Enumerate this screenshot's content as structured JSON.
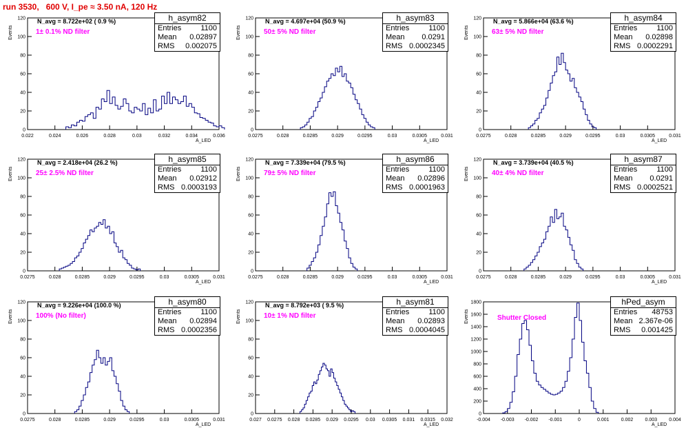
{
  "title": "run 3530,   600 V, I_pe ≈ 3.50 nA, 120 Hz",
  "chart_data": [
    {
      "type": "bar",
      "name": "h_asym82",
      "stats": {
        "entries_label": "Entries",
        "entries": "1100",
        "mean_label": "Mean",
        "mean": "0.02897",
        "rms_label": "RMS",
        "rms": "0.002075"
      },
      "n_avg": "N_avg = 8.722e+02 ( 0.9 %)",
      "filter": "1± 0.1% ND filter",
      "ylabel": "Events",
      "xlabel": "A_LED",
      "xlim": [
        0.022,
        0.036
      ],
      "ylim": [
        0,
        120
      ],
      "xticks": [
        "0.022",
        "0.024",
        "0.026",
        "0.028",
        "0.03",
        "0.032",
        "0.034",
        "0.036"
      ],
      "yticks": [
        "0",
        "20",
        "40",
        "60",
        "80",
        "100",
        "120"
      ],
      "bin_start": 0.0248,
      "bin_width": 0.0002,
      "values": [
        3,
        2,
        5,
        4,
        8,
        10,
        9,
        14,
        16,
        18,
        12,
        24,
        22,
        33,
        30,
        42,
        28,
        35,
        26,
        22,
        25,
        33,
        28,
        20,
        18,
        24,
        22,
        20,
        28,
        16,
        23,
        18,
        32,
        20,
        22,
        36,
        28,
        40,
        28,
        35,
        32,
        28,
        30,
        36,
        25,
        28,
        24,
        18,
        17,
        13,
        12,
        10,
        8,
        7,
        4,
        3,
        4,
        2
      ]
    },
    {
      "type": "bar",
      "name": "h_asym83",
      "stats": {
        "entries_label": "Entries",
        "entries": "1100",
        "mean_label": "Mean",
        "mean": "0.0291",
        "rms_label": "RMS",
        "rms": "0.0002345"
      },
      "n_avg": "N_avg = 4.697e+04 (50.9 %)",
      "filter": "50± 5% ND filter",
      "ylabel": "Events",
      "xlabel": "A_LED",
      "xlim": [
        0.0275,
        0.031
      ],
      "ylim": [
        0,
        120
      ],
      "xticks": [
        "0.0275",
        "0.028",
        "0.0285",
        "0.029",
        "0.0295",
        "0.03",
        "0.0305",
        "0.031"
      ],
      "yticks": [
        "0",
        "20",
        "40",
        "60",
        "80",
        "100",
        "120"
      ],
      "bin_start": 0.02832,
      "bin_width": 4e-05,
      "values": [
        2,
        3,
        5,
        8,
        12,
        14,
        20,
        24,
        30,
        34,
        40,
        46,
        52,
        55,
        60,
        58,
        66,
        62,
        68,
        57,
        60,
        52,
        50,
        45,
        38,
        32,
        28,
        22,
        16,
        12,
        8,
        5,
        3,
        2
      ]
    },
    {
      "type": "bar",
      "name": "h_asym84",
      "stats": {
        "entries_label": "Entries",
        "entries": "1100",
        "mean_label": "Mean",
        "mean": "0.02898",
        "rms_label": "RMS",
        "rms": "0.0002291"
      },
      "n_avg": "N_avg = 5.866e+04 (63.6 %)",
      "filter": "63± 5% ND filter",
      "ylabel": "Events",
      "xlabel": "A_LED",
      "xlim": [
        0.0275,
        0.031
      ],
      "ylim": [
        0,
        120
      ],
      "xticks": [
        "0.0275",
        "0.028",
        "0.0285",
        "0.029",
        "0.0295",
        "0.03",
        "0.0305",
        "0.031"
      ],
      "yticks": [
        "0",
        "20",
        "40",
        "60",
        "80",
        "100",
        "120"
      ],
      "bin_start": 0.02832,
      "bin_width": 4e-05,
      "values": [
        2,
        4,
        6,
        10,
        12,
        18,
        22,
        26,
        34,
        42,
        50,
        58,
        62,
        78,
        70,
        82,
        72,
        64,
        60,
        52,
        55,
        45,
        40,
        35,
        30,
        22,
        16,
        10,
        6,
        3,
        2
      ]
    },
    {
      "type": "bar",
      "name": "h_asym85",
      "stats": {
        "entries_label": "Entries",
        "entries": "1100",
        "mean_label": "Mean",
        "mean": "0.02912",
        "rms_label": "RMS",
        "rms": "0.0003193"
      },
      "n_avg": "N_avg = 2.418e+04 (26.2 %)",
      "filter": "25± 2.5% ND filter",
      "ylabel": "Events",
      "xlabel": "A_LED",
      "xlim": [
        0.0275,
        0.031
      ],
      "ylim": [
        0,
        120
      ],
      "xticks": [
        "0.0275",
        "0.028",
        "0.0285",
        "0.029",
        "0.0295",
        "0.03",
        "0.0305",
        "0.031"
      ],
      "yticks": [
        "0",
        "20",
        "40",
        "60",
        "80",
        "100",
        "120"
      ],
      "bin_start": 0.02808,
      "bin_width": 4e-05,
      "values": [
        2,
        3,
        4,
        5,
        6,
        8,
        10,
        14,
        16,
        20,
        24,
        30,
        34,
        38,
        44,
        42,
        46,
        48,
        52,
        50,
        55,
        46,
        48,
        40,
        42,
        30,
        26,
        20,
        22,
        14,
        12,
        8,
        6,
        3,
        2,
        1,
        2
      ]
    },
    {
      "type": "bar",
      "name": "h_asym86",
      "stats": {
        "entries_label": "Entries",
        "entries": "1100",
        "mean_label": "Mean",
        "mean": "0.02896",
        "rms_label": "RMS",
        "rms": "0.0001963"
      },
      "n_avg": "N_avg = 7.339e+04 (79.5 %)",
      "filter": "79± 5% ND filter",
      "ylabel": "Events",
      "xlabel": "A_LED",
      "xlim": [
        0.0275,
        0.031
      ],
      "ylim": [
        0,
        120
      ],
      "xticks": [
        "0.0275",
        "0.028",
        "0.0285",
        "0.029",
        "0.0295",
        "0.03",
        "0.0305",
        "0.031"
      ],
      "yticks": [
        "0",
        "20",
        "40",
        "60",
        "80",
        "100",
        "120"
      ],
      "bin_start": 0.02844,
      "bin_width": 4e-05,
      "values": [
        3,
        6,
        10,
        14,
        20,
        28,
        38,
        48,
        58,
        72,
        84,
        80,
        85,
        70,
        62,
        52,
        44,
        32,
        24,
        14,
        8,
        4,
        2
      ]
    },
    {
      "type": "bar",
      "name": "h_asym87",
      "stats": {
        "entries_label": "Entries",
        "entries": "1100",
        "mean_label": "Mean",
        "mean": "0.0291",
        "rms_label": "RMS",
        "rms": "0.0002521"
      },
      "n_avg": "N_avg = 3.739e+04 (40.5 %)",
      "filter": "40± 4% ND filter",
      "ylabel": "Events",
      "xlabel": "A_LED",
      "xlim": [
        0.0275,
        0.031
      ],
      "ylim": [
        0,
        120
      ],
      "xticks": [
        "0.0275",
        "0.028",
        "0.0285",
        "0.029",
        "0.0295",
        "0.03",
        "0.0305",
        "0.031"
      ],
      "yticks": [
        "0",
        "20",
        "40",
        "60",
        "80",
        "100",
        "120"
      ],
      "bin_start": 0.02824,
      "bin_width": 4e-05,
      "values": [
        2,
        4,
        6,
        9,
        12,
        16,
        20,
        26,
        30,
        34,
        42,
        48,
        58,
        52,
        66,
        56,
        58,
        62,
        48,
        44,
        36,
        28,
        22,
        12,
        8,
        4,
        2
      ]
    },
    {
      "type": "bar",
      "name": "h_asym80",
      "stats": {
        "entries_label": "Entries",
        "entries": "1100",
        "mean_label": "Mean",
        "mean": "0.02894",
        "rms_label": "RMS",
        "rms": "0.0002356"
      },
      "n_avg": "N_avg = 9.226e+04 (100.0 %)",
      "filter": "100% (No filter)",
      "ylabel": "Events",
      "xlabel": "A_LED",
      "xlim": [
        0.0275,
        0.031
      ],
      "ylim": [
        0,
        120
      ],
      "xticks": [
        "0.0275",
        "0.028",
        "0.0285",
        "0.029",
        "0.0295",
        "0.03",
        "0.0305",
        "0.031"
      ],
      "yticks": [
        "0",
        "20",
        "40",
        "60",
        "80",
        "100",
        "120"
      ],
      "bin_start": 0.02836,
      "bin_width": 4e-05,
      "values": [
        2,
        4,
        8,
        14,
        20,
        28,
        34,
        44,
        52,
        58,
        68,
        60,
        54,
        60,
        52,
        56,
        60,
        46,
        40,
        32,
        24,
        14,
        8,
        4,
        2
      ]
    },
    {
      "type": "bar",
      "name": "h_asym81",
      "stats": {
        "entries_label": "Entries",
        "entries": "1100",
        "mean_label": "Mean",
        "mean": "0.02893",
        "rms_label": "RMS",
        "rms": "0.0004045"
      },
      "n_avg": "N_avg = 8.792e+03 ( 9.5 %)",
      "filter": "10± 1% ND filter",
      "ylabel": "Events",
      "xlabel": "A_LED",
      "xlim": [
        0.027,
        0.032
      ],
      "ylim": [
        0,
        120
      ],
      "xticks": [
        "0.027",
        "0.0275",
        "0.028",
        "0.0285",
        "0.029",
        "0.0295",
        "0.03",
        "0.0305",
        "0.031",
        "0.0315",
        "0.032"
      ],
      "yticks": [
        "0",
        "20",
        "40",
        "60",
        "80",
        "100",
        "120"
      ],
      "bin_start": 0.02816,
      "bin_width": 4e-05,
      "values": [
        2,
        4,
        6,
        10,
        14,
        18,
        22,
        24,
        30,
        34,
        32,
        36,
        42,
        46,
        50,
        54,
        52,
        48,
        46,
        40,
        48,
        44,
        38,
        34,
        30,
        26,
        22,
        18,
        14,
        10,
        8,
        6,
        4,
        2,
        3,
        2
      ]
    },
    {
      "type": "bar",
      "name": "hPed_asym",
      "stats": {
        "entries_label": "Entries",
        "entries": "48753",
        "mean_label": "Mean",
        "mean": "2.367e-06",
        "rms_label": "RMS",
        "rms": "0.001425"
      },
      "n_avg": "",
      "filter": "Shutter Closed",
      "ylabel": "Events",
      "xlabel": "A_LED",
      "xlim": [
        -0.004,
        0.004
      ],
      "ylim": [
        0,
        1800
      ],
      "xticks": [
        "-0.004",
        "-0.003",
        "-0.002",
        "-0.001",
        "0",
        "0.001",
        "0.002",
        "0.003",
        "0.004"
      ],
      "yticks": [
        "0",
        "200",
        "400",
        "600",
        "800",
        "1000",
        "1200",
        "1400",
        "1600",
        "1800"
      ],
      "bin_start": -0.0032,
      "bin_width": 0.0001,
      "values": [
        10,
        30,
        80,
        180,
        350,
        600,
        950,
        1200,
        1450,
        1500,
        1350,
        1100,
        850,
        650,
        520,
        460,
        420,
        390,
        360,
        330,
        310,
        300,
        310,
        330,
        360,
        420,
        520,
        680,
        900,
        1200,
        1550,
        1780,
        1500,
        1150,
        850,
        650,
        420,
        200,
        80,
        20
      ]
    }
  ]
}
